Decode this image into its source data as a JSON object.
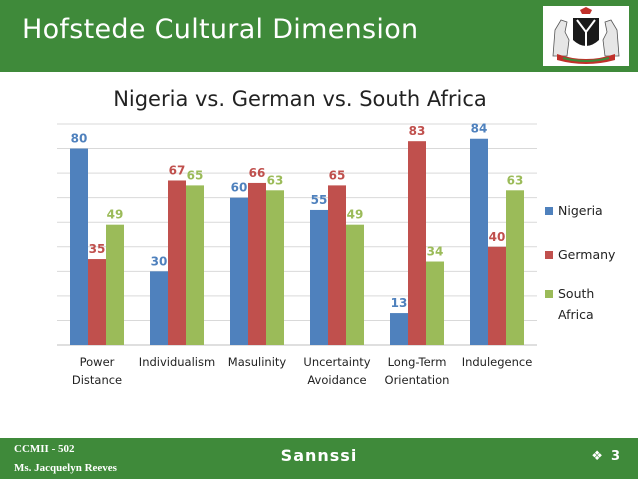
{
  "header": {
    "title": "Hofstede Cultural Dimension"
  },
  "crest": {
    "icon": "nigeria-coat-of-arms-icon"
  },
  "footer": {
    "line1": "CCMII - 502",
    "line2": "Ms. Jacquelyn Reeves",
    "center": "Sannssi",
    "slide_symbol": "❖",
    "slide_number": "3"
  },
  "chart_data": {
    "type": "bar",
    "title": "Nigeria vs. German vs. South Africa",
    "categories": [
      [
        "Power",
        "Distance"
      ],
      [
        "Individualism"
      ],
      [
        "Masulinity"
      ],
      [
        "Uncertainty",
        "Avoidance"
      ],
      [
        "Long-Term",
        "Orientation"
      ],
      [
        "Indulegence"
      ]
    ],
    "series": [
      {
        "name": "Nigeria",
        "color": "#4f81bd",
        "values": [
          80,
          30,
          60,
          55,
          13,
          84
        ]
      },
      {
        "name": "Germany",
        "color": "#c0504d",
        "values": [
          35,
          67,
          66,
          65,
          83,
          40
        ]
      },
      {
        "name": "South Africa",
        "color": "#9bbb59",
        "values": [
          49,
          65,
          63,
          49,
          34,
          63
        ]
      }
    ],
    "legend_position": "right",
    "ylim": [
      0,
      90
    ],
    "grid": true,
    "data_labels": true
  }
}
